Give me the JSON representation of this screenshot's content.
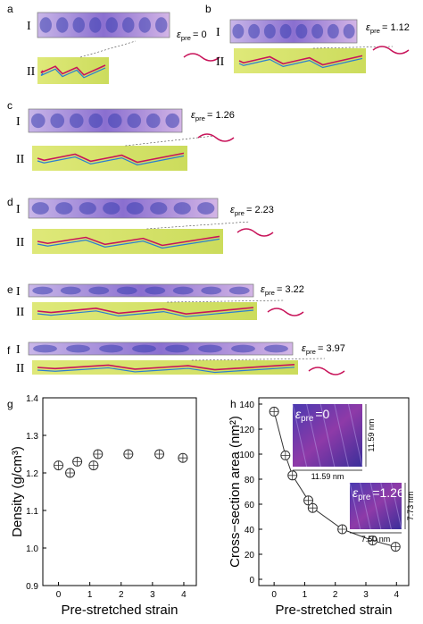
{
  "panels": [
    {
      "label": "a",
      "rows": [
        "I",
        "II"
      ],
      "strain": "= 0"
    },
    {
      "label": "b",
      "rows": [
        "I",
        "II"
      ],
      "strain": "= 1.12"
    },
    {
      "label": "c",
      "rows": [
        "I",
        "II"
      ],
      "strain": "= 1.26"
    },
    {
      "label": "d",
      "rows": [
        "I",
        "II"
      ],
      "strain": "= 2.23"
    },
    {
      "label": "e",
      "rows": [
        "I",
        "II"
      ],
      "strain": "= 3.22"
    },
    {
      "label": "f",
      "rows": [
        "I",
        "II"
      ],
      "strain": "= 3.97"
    }
  ],
  "strain_symbol": "ε",
  "strain_sub": "pre",
  "chart_data": [
    {
      "type": "scatter",
      "panel_label": "g",
      "x_label": "Pre-stretched strain",
      "y_label": "Density (g/cm³)",
      "x": [
        0,
        0.37,
        0.6,
        1.12,
        1.26,
        2.23,
        3.22,
        3.97
      ],
      "values": [
        1.22,
        1.2,
        1.23,
        1.22,
        1.25,
        1.25,
        1.25,
        1.24
      ],
      "color": "#333333",
      "xlim": [
        -0.5,
        4.4
      ],
      "xticks": [
        0,
        1,
        2,
        3,
        4
      ],
      "ylim": [
        0.9,
        1.4
      ],
      "yticks": [
        {
          "value": 0.9,
          "label": "0.9"
        },
        {
          "value": 1,
          "label": "1.0"
        },
        1.1,
        1.2,
        1.3,
        1.4
      ]
    },
    {
      "type": "line",
      "panel_label": "h",
      "x_label": "Pre-stretched strain",
      "y_label": "Cross−section area (nm²)",
      "x": [
        0,
        0.37,
        0.6,
        1.12,
        1.26,
        2.23,
        3.22,
        3.97
      ],
      "values": [
        134,
        99,
        83,
        63,
        57,
        40,
        31,
        26
      ],
      "color": "#333333",
      "xlim": [
        -0.5,
        4.4
      ],
      "xticks": [
        0,
        1,
        2,
        3,
        4
      ],
      "ylim": [
        -5,
        145
      ],
      "yticks": [
        0,
        20,
        40,
        60,
        80,
        100,
        120,
        140
      ],
      "insets": [
        {
          "strain": "=0",
          "width": "11.59 nm",
          "height": "11.59 nm"
        },
        {
          "strain": "=1.26",
          "width": "7.50 nm",
          "height": "7.73 nm"
        }
      ]
    }
  ]
}
